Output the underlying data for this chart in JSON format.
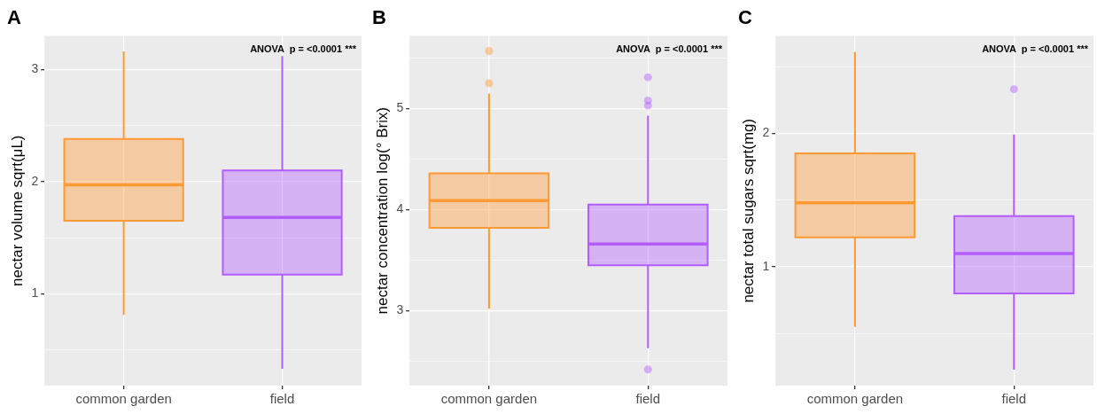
{
  "chart_data": [
    {
      "type": "box",
      "title": "A",
      "ylabel": "nectar volume sqrt(μL)",
      "categories": [
        "common garden",
        "field"
      ],
      "colors": [
        "#ff9933",
        "#b35cff"
      ],
      "boxes": [
        {
          "low": 0.81,
          "q1": 1.65,
          "median": 1.97,
          "q3": 2.38,
          "high": 3.16
        },
        {
          "low": 0.33,
          "q1": 1.17,
          "median": 1.68,
          "q3": 2.1,
          "high": 3.12
        }
      ],
      "ylim": [
        0.18,
        3.3
      ],
      "yticks": [
        {
          "value": 0.5,
          "label": null
        },
        1,
        {
          "value": 1.5,
          "label": null
        },
        2,
        {
          "value": 2.5,
          "label": null
        },
        3
      ],
      "grid": true,
      "annotations": [
        "ANOVA  p = <0.0001 ***"
      ]
    },
    {
      "type": "box",
      "title": "B",
      "ylabel": "nectar concentration log(° Brix)",
      "categories": [
        "common garden",
        "field"
      ],
      "colors": [
        "#ff9933",
        "#b35cff"
      ],
      "boxes": [
        {
          "low": 3.02,
          "q1": 3.82,
          "median": 4.09,
          "q3": 4.36,
          "high": 5.15,
          "outliers": [
            5.57,
            5.25
          ]
        },
        {
          "low": 2.63,
          "q1": 3.45,
          "median": 3.66,
          "q3": 4.05,
          "high": 4.93,
          "outliers": [
            5.31,
            5.08,
            5.03,
            2.42
          ]
        }
      ],
      "ylim": [
        2.26,
        5.72
      ],
      "yticks": [
        {
          "value": 2.5,
          "label": null
        },
        3,
        {
          "value": 3.5,
          "label": null
        },
        4,
        {
          "value": 4.5,
          "label": null
        },
        5,
        {
          "value": 5.5,
          "label": null
        }
      ],
      "grid": true,
      "annotations": [
        "ANOVA  p = <0.0001 ***"
      ]
    },
    {
      "type": "box",
      "title": "C",
      "ylabel": "nectar total sugars sqrt(mg)",
      "categories": [
        "common garden",
        "field"
      ],
      "colors": [
        "#ff9933",
        "#b35cff"
      ],
      "boxes": [
        {
          "low": 0.55,
          "q1": 1.22,
          "median": 1.48,
          "q3": 1.85,
          "high": 2.61
        },
        {
          "low": 0.23,
          "q1": 0.8,
          "median": 1.1,
          "q3": 1.38,
          "high": 1.99,
          "outliers": [
            2.33
          ]
        }
      ],
      "ylim": [
        0.11,
        2.73
      ],
      "yticks": [
        {
          "value": 0.5,
          "label": null
        },
        1,
        {
          "value": 1.5,
          "label": null
        },
        2,
        {
          "value": 2.5,
          "label": null
        }
      ],
      "grid": true,
      "annotations": [
        "ANOVA  p = <0.0001 ***"
      ]
    }
  ]
}
